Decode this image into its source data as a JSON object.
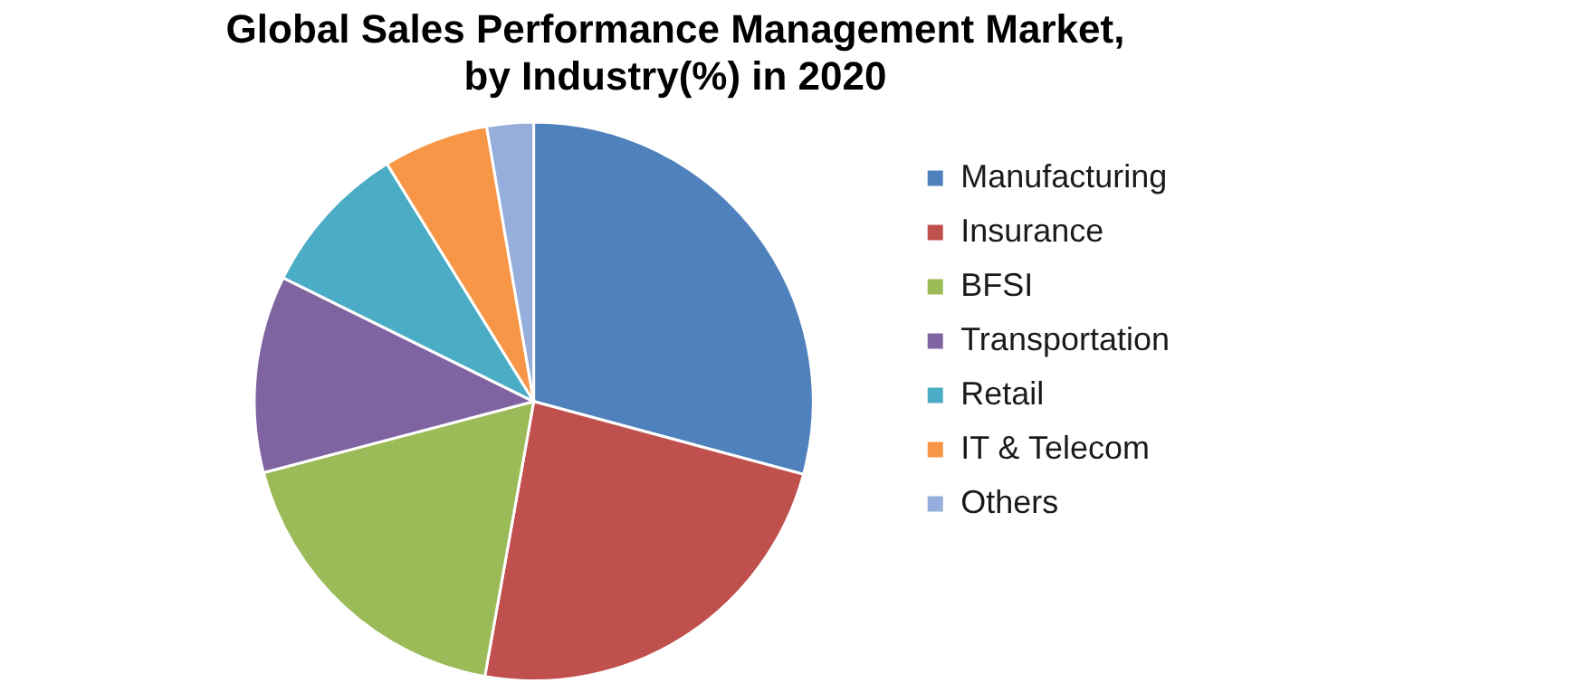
{
  "chart_data": {
    "type": "pie",
    "title": "Global Sales Performance Management Market,\nby Industry(%) in 2020",
    "categories": [
      "Manufacturing",
      "Insurance",
      "BFSI",
      "Transportation",
      "Retail",
      "IT & Telecom",
      "Others"
    ],
    "values": [
      29.2,
      23.6,
      18.1,
      11.4,
      8.9,
      6.1,
      2.7
    ],
    "colors": [
      "#4f81bd",
      "#c0504d",
      "#9bbb59",
      "#8064a2",
      "#4bacc6",
      "#f79646",
      "#95aedb"
    ],
    "legend": "right"
  }
}
